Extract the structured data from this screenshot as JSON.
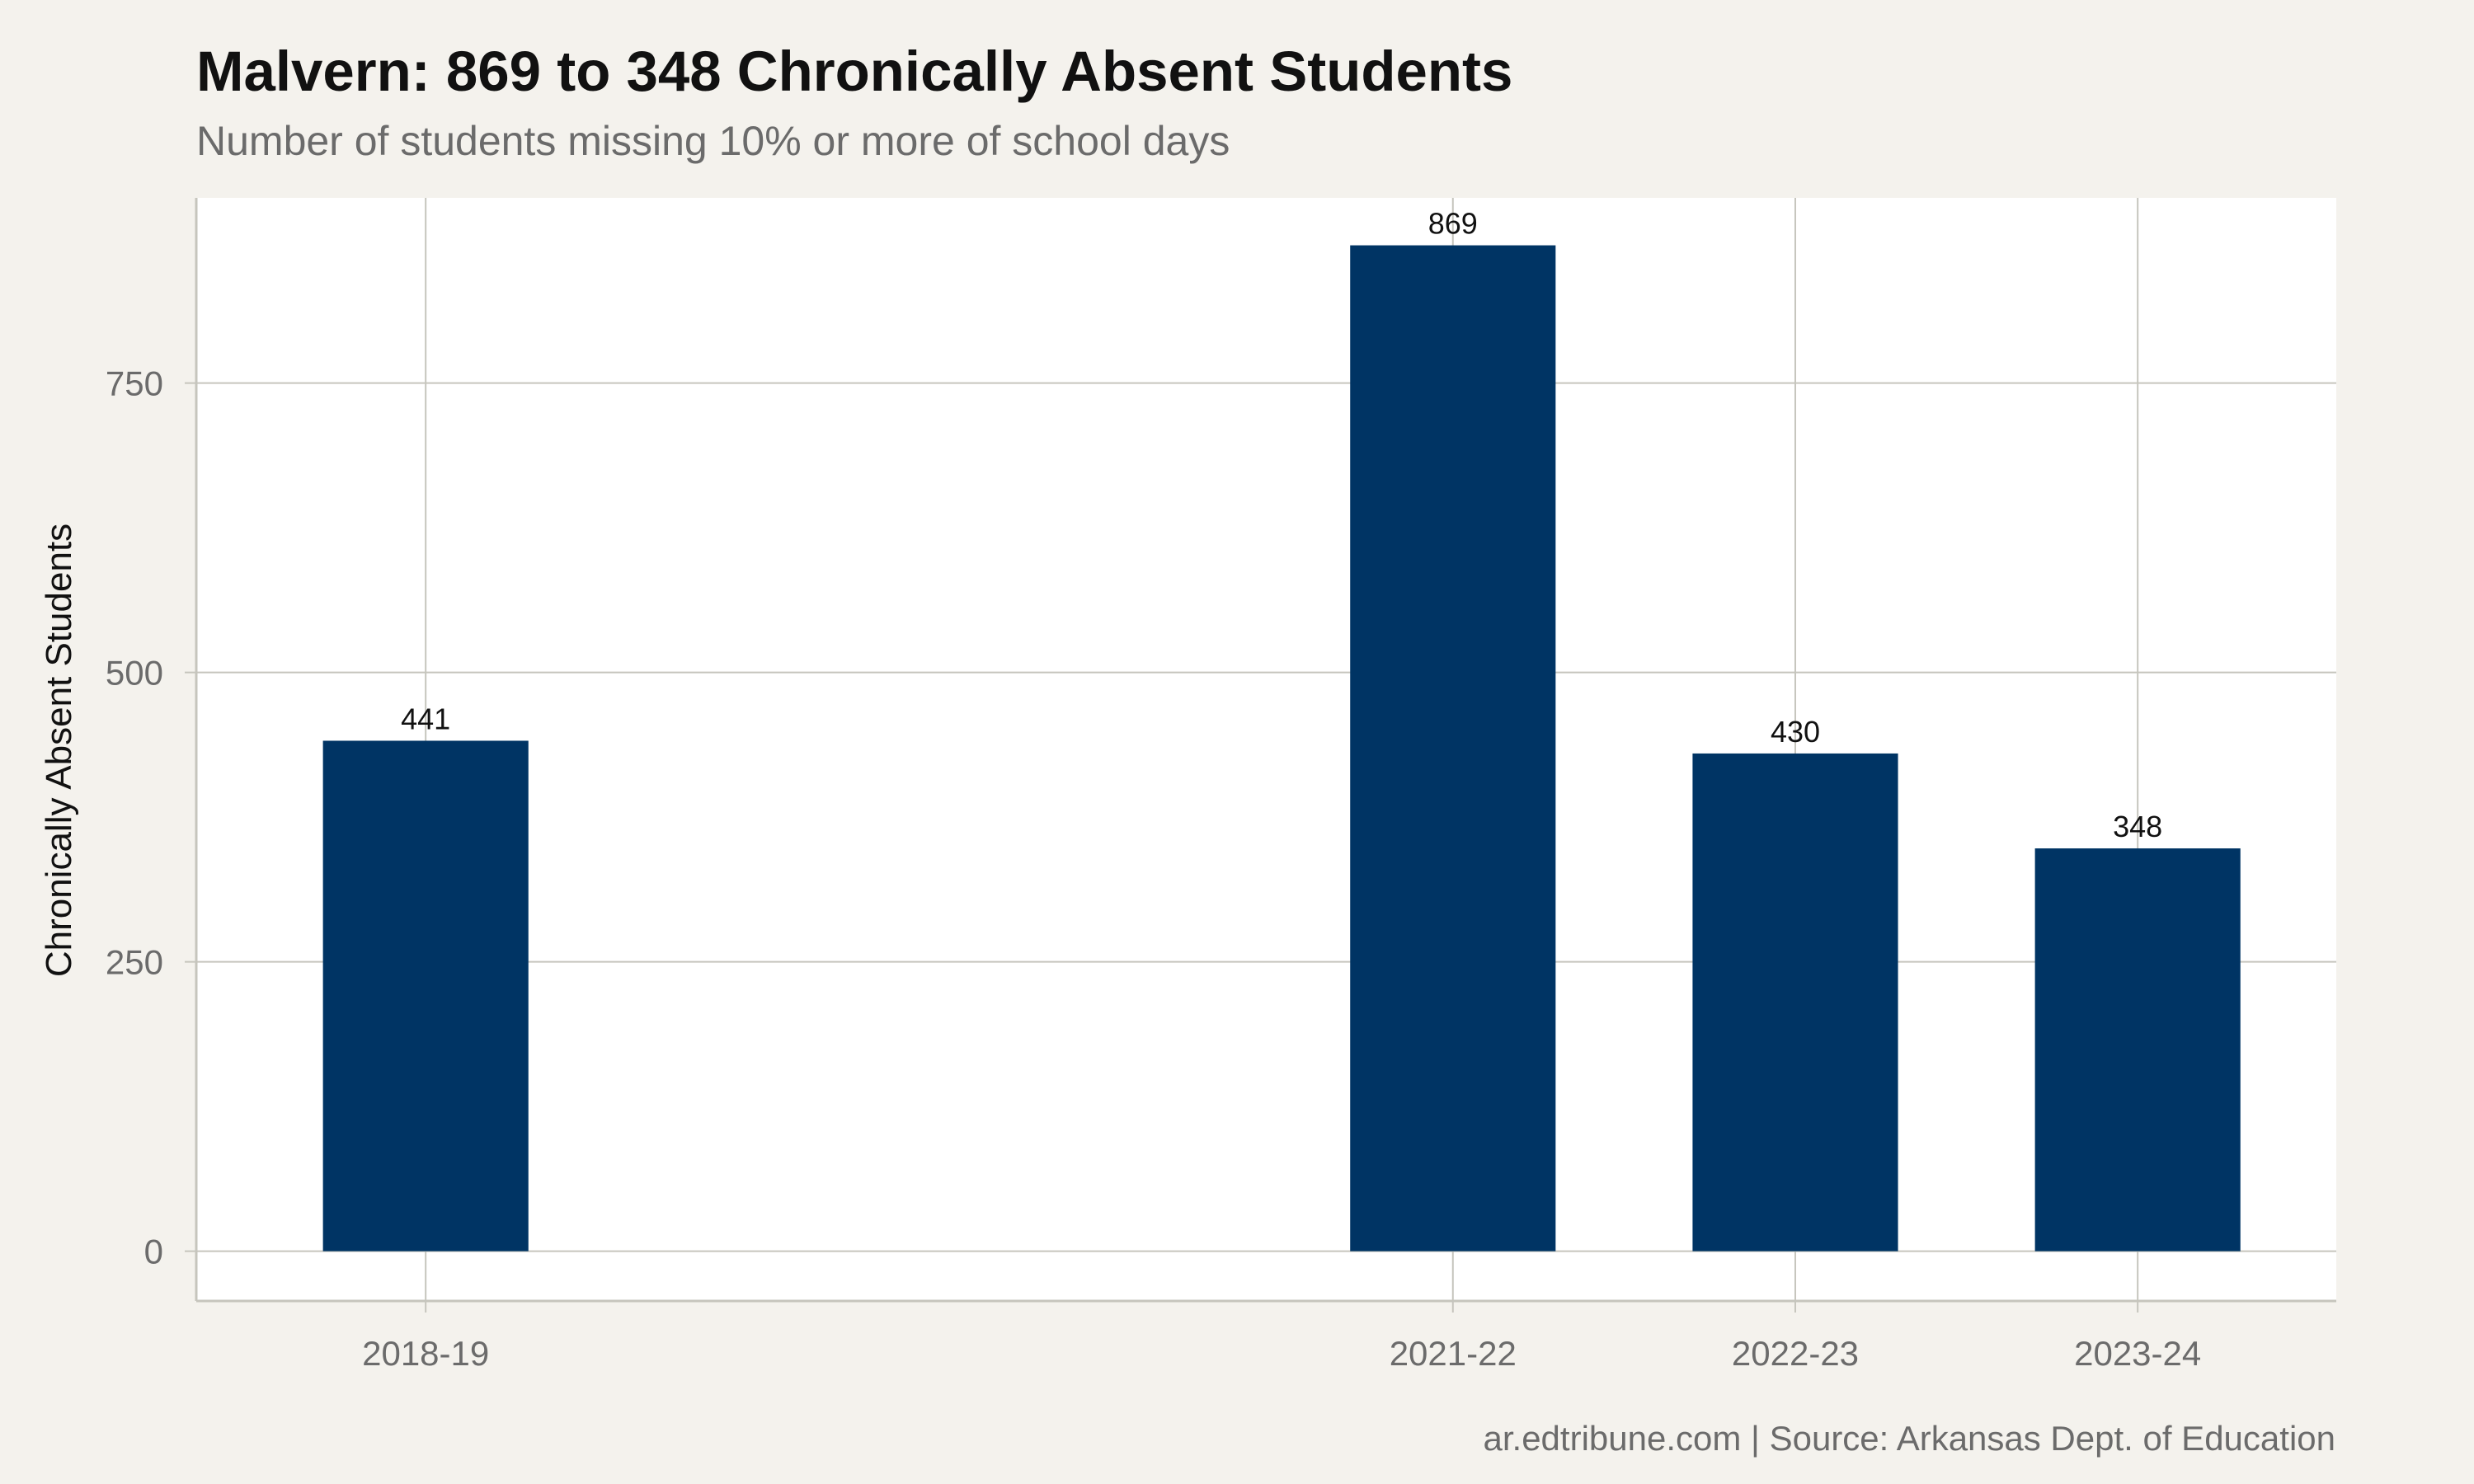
{
  "chart_data": {
    "type": "bar",
    "title": "Malvern: 869 to 348 Chronically Absent Students",
    "subtitle": "Number of students missing 10% or more of school days",
    "ylabel": "Chronically Absent Students",
    "xlabel": "",
    "categories": [
      "2018-19",
      "2021-22",
      "2022-23",
      "2023-24"
    ],
    "x_positions": [
      2018,
      2021,
      2022,
      2023
    ],
    "x_range": [
      2017.33,
      2023.58
    ],
    "values": [
      441,
      869,
      430,
      348
    ],
    "ylim": [
      -43,
      910
    ],
    "yticks": [
      0,
      250,
      500,
      750
    ],
    "grid": true,
    "legend": "none",
    "bar_color": "#003464",
    "background_color": "#f4f2ed",
    "panel_color": "#ffffff",
    "caption": "ar.edtribune.com | Source: Arkansas Dept. of Education"
  }
}
